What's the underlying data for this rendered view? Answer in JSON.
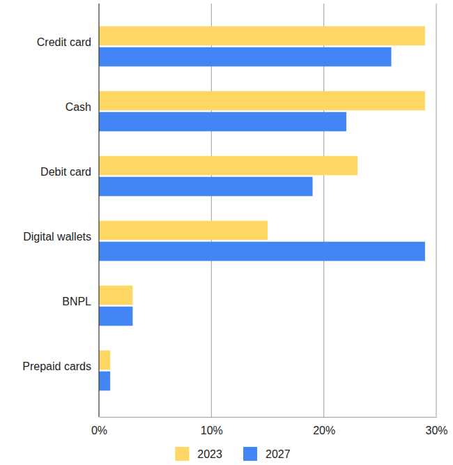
{
  "chart_data": {
    "type": "bar",
    "orientation": "horizontal",
    "categories": [
      "Credit card",
      "Cash",
      "Debit card",
      "Digital wallets",
      "BNPL",
      "Prepaid cards"
    ],
    "series": [
      {
        "name": "2023",
        "color": "#fdd663",
        "values": [
          29,
          29,
          23,
          15,
          3,
          1
        ]
      },
      {
        "name": "2027",
        "color": "#4285f4",
        "values": [
          26,
          22,
          19,
          29,
          3,
          1
        ]
      }
    ],
    "xlim": [
      0,
      30
    ],
    "xticks": [
      {
        "value": 0,
        "label": "0%"
      },
      {
        "value": 10,
        "label": "10%"
      },
      {
        "value": 20,
        "label": "20%"
      },
      {
        "value": 30,
        "label": "30%"
      }
    ],
    "grid": true,
    "legend": "bottom"
  }
}
